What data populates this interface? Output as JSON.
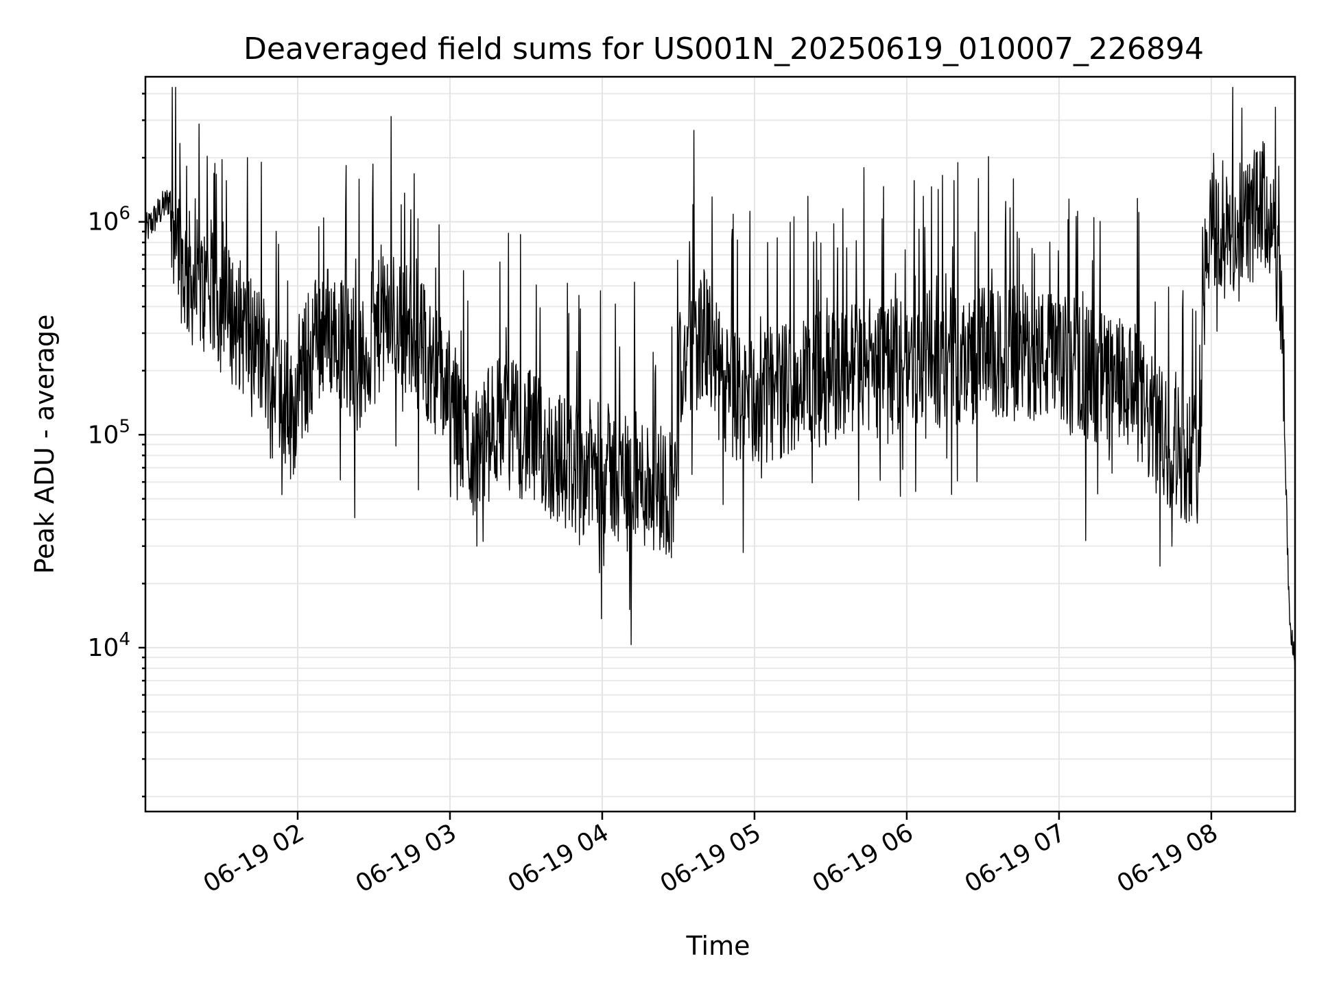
{
  "chart_data": {
    "type": "line",
    "title": "Deaveraged field sums for US001N_20250619_010007_226894",
    "xlabel": "Time",
    "ylabel": "Peak ADU - average",
    "yscale": "log",
    "ylim": [
      1700,
      4800000
    ],
    "xlim": [
      "2025-06-19 01:00",
      "2025-06-19 08:33"
    ],
    "x_ticks": [
      "06-19 02",
      "06-19 03",
      "06-19 04",
      "06-19 05",
      "06-19 06",
      "06-19 07",
      "06-19 08"
    ],
    "y_ticks": [
      {
        "base": "10",
        "exp": "4",
        "value": 10000
      },
      {
        "base": "10",
        "exp": "5",
        "value": 100000
      },
      {
        "base": "10",
        "exp": "6",
        "value": 1000000
      }
    ],
    "grid": true,
    "line_color": "#000000",
    "series": [
      {
        "x": [
          "01:00",
          "01:05",
          "01:10",
          "01:12",
          "01:15",
          "01:20",
          "01:25",
          "01:30",
          "01:35",
          "01:40",
          "01:45",
          "01:50",
          "01:55",
          "01:57",
          "02:00",
          "02:05",
          "02:10",
          "02:15",
          "02:20",
          "02:25",
          "02:30",
          "02:35",
          "02:40",
          "02:45",
          "02:50",
          "02:55",
          "03:00",
          "03:05",
          "03:10",
          "03:15",
          "03:20",
          "03:25",
          "03:30",
          "03:35",
          "03:40",
          "03:45",
          "03:50",
          "03:55",
          "04:00",
          "04:05",
          "04:10",
          "04:15",
          "04:20",
          "04:25",
          "04:29",
          "04:30",
          "04:35",
          "04:40",
          "04:45",
          "04:50",
          "04:55",
          "05:00",
          "05:05",
          "05:10",
          "05:15",
          "05:20",
          "05:25",
          "05:30",
          "05:35",
          "05:40",
          "05:45",
          "05:50",
          "05:55",
          "06:00",
          "06:05",
          "06:10",
          "06:15",
          "06:20",
          "06:25",
          "06:30",
          "06:35",
          "06:40",
          "06:45",
          "06:50",
          "06:55",
          "07:00",
          "07:05",
          "07:10",
          "07:15",
          "07:20",
          "07:25",
          "07:30",
          "07:35",
          "07:40",
          "07:45",
          "07:50",
          "07:55",
          "07:58",
          "08:00",
          "08:05",
          "08:10",
          "08:15",
          "08:20",
          "08:22",
          "08:25",
          "08:28",
          "08:30",
          "08:31",
          "08:32",
          "08:33"
        ],
        "y": [
          900000,
          1100000,
          1300000,
          1000000,
          600000,
          500000,
          450000,
          400000,
          350000,
          300000,
          250000,
          200000,
          150000,
          120000,
          150000,
          250000,
          320000,
          300000,
          250000,
          200000,
          300000,
          350000,
          350000,
          300000,
          250000,
          200000,
          150000,
          100000,
          80000,
          100000,
          120000,
          110000,
          100000,
          90000,
          80000,
          75000,
          70000,
          70000,
          70000,
          65000,
          65000,
          60000,
          60000,
          55000,
          55000,
          200000,
          250000,
          300000,
          200000,
          150000,
          150000,
          140000,
          150000,
          160000,
          170000,
          180000,
          180000,
          190000,
          200000,
          210000,
          200000,
          200000,
          210000,
          220000,
          220000,
          230000,
          220000,
          220000,
          230000,
          240000,
          230000,
          240000,
          250000,
          240000,
          230000,
          220000,
          210000,
          200000,
          190000,
          180000,
          170000,
          160000,
          120000,
          100000,
          90000,
          80000,
          80000,
          900000,
          1000000,
          800000,
          900000,
          1000000,
          1200000,
          1100000,
          800000,
          300000,
          30000,
          12000,
          10000,
          9000
        ]
      }
    ]
  }
}
